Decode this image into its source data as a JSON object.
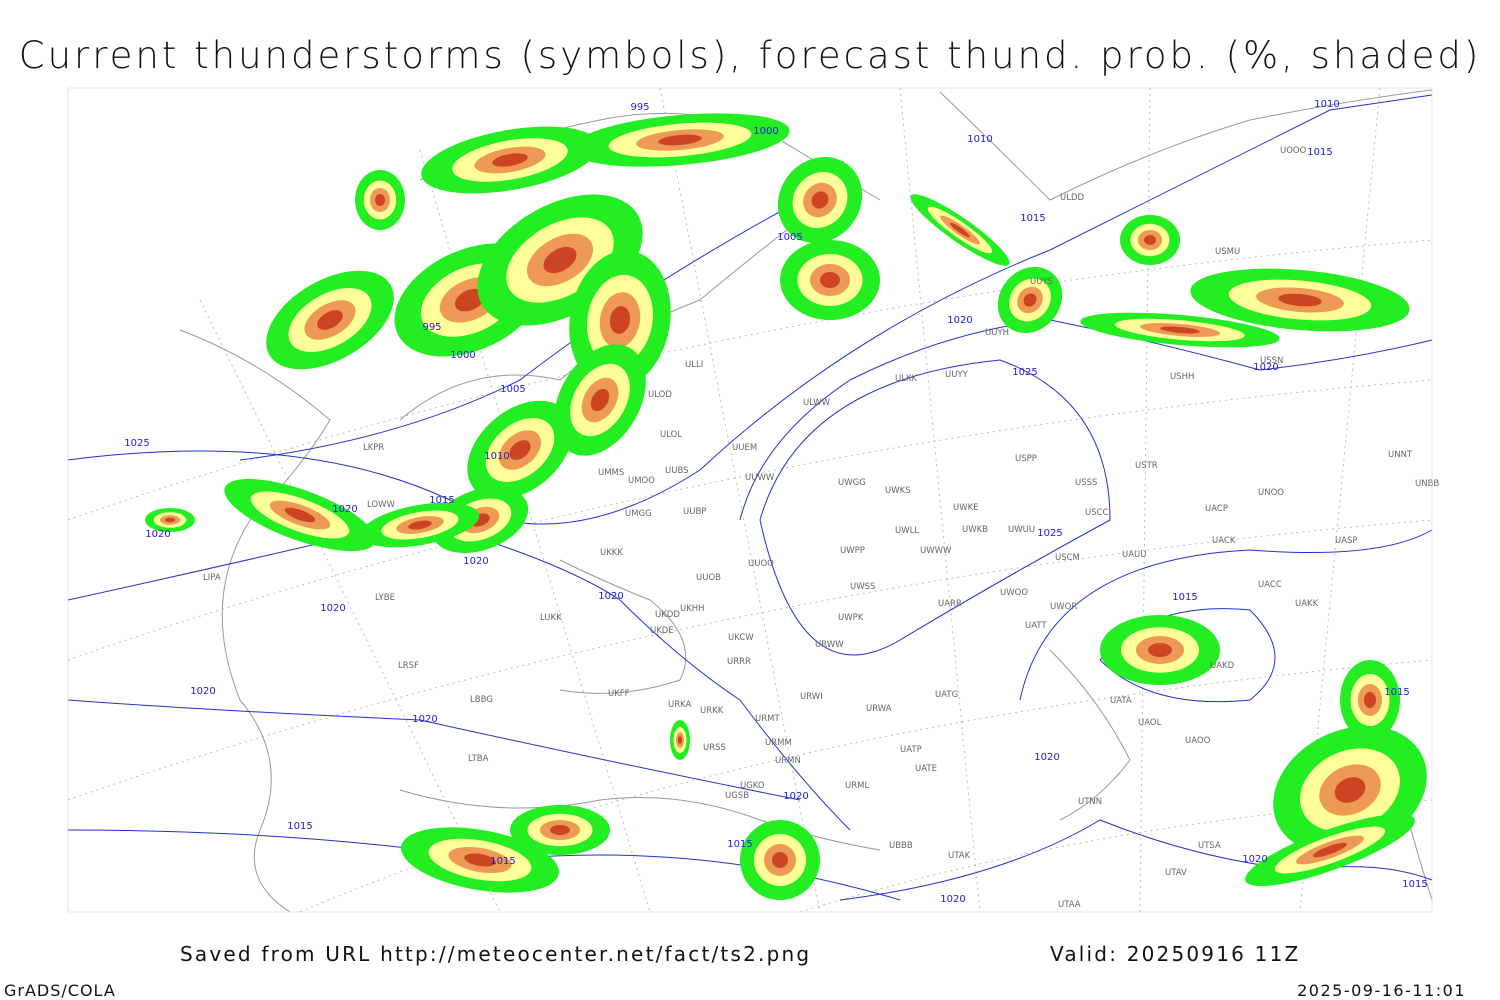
{
  "title": "Current thunderstorms (symbols), forecast thund. prob. (%, shaded)",
  "footer": {
    "saved": "Saved from URL http://meteocenter.net/fact/ts2.png",
    "valid": "Valid: 20250916 11Z",
    "credit": "GrADS/COLA",
    "timestamp": "2025-09-16-11:01"
  },
  "isobar_labels": [
    "995",
    "1000",
    "1010",
    "1010",
    "1015",
    "1015",
    "1005",
    "995",
    "1000",
    "1005",
    "1020",
    "1025",
    "1025",
    "1010",
    "1015",
    "1020",
    "1020",
    "1025",
    "1020",
    "1020",
    "1015",
    "1020",
    "1015",
    "1020",
    "1020",
    "1020",
    "1020",
    "1015",
    "1015",
    "1015",
    "1020",
    "1015",
    "1020",
    "1020"
  ],
  "stations": [
    "ULDD",
    "USMU",
    "UUYS",
    "UUYH",
    "ULKK",
    "UUYY",
    "ULWW",
    "UUEM",
    "UUWW",
    "UWGG",
    "UWKS",
    "USPP",
    "USSS",
    "USTR",
    "UNNT",
    "UNBB",
    "UNOO",
    "UWKE",
    "UWKB",
    "UWUU",
    "USCC",
    "UACP",
    "UACK",
    "UASP",
    "UWLL",
    "UWWW",
    "USCM",
    "UAUU",
    "UWPP",
    "UUOO",
    "UWSS",
    "UARR",
    "UWOO",
    "UWOR",
    "UACC",
    "UAKK",
    "UATT",
    "UWPK",
    "URWW",
    "UKCW",
    "URRR",
    "UKDD",
    "UKHH",
    "UKDE",
    "ULOL",
    "ULLI",
    "ULOD",
    "UMMS",
    "UMOO",
    "UUBS",
    "UMGG",
    "UUBP",
    "UKKK",
    "UUOB",
    "LUKK",
    "LYBE",
    "LRSF",
    "LBBG",
    "LTBA",
    "UKFF",
    "URKA",
    "URKK",
    "URMT",
    "URWI",
    "UATG",
    "URWA",
    "URMM",
    "URSS",
    "URMN",
    "UATP",
    "UATE",
    "UGKO",
    "UGSB",
    "URML",
    "UBBB",
    "UTAK",
    "UTSA",
    "UTAV",
    "UTAA",
    "UTNN",
    "UAOO",
    "UAOL",
    "UATA",
    "UAKD",
    "LIPA",
    "LKPR",
    "LOWW",
    "USSN",
    "USHH",
    "UOOO"
  ]
}
